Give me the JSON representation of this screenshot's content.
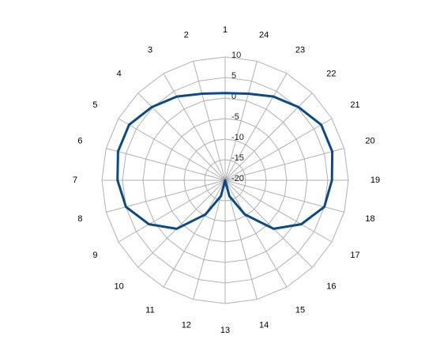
{
  "chart_data": {
    "type": "radar",
    "categories": [
      "1",
      "2",
      "3",
      "4",
      "5",
      "6",
      "7",
      "8",
      "9",
      "10",
      "11",
      "12",
      "13",
      "14",
      "15",
      "16",
      "17",
      "18",
      "19",
      "20",
      "21",
      "22",
      "23",
      "24"
    ],
    "series": [
      {
        "color": "#0b4a84",
        "values": [
          1.2,
          1.8,
          3.5,
          5.2,
          7,
          7,
          6.2,
          5,
          1.4,
          -3.3,
          -10.4,
          -16,
          -20,
          -16,
          -10.4,
          -3.3,
          1.4,
          5,
          6,
          7,
          7,
          5.2,
          3.5,
          1.8
        ]
      }
    ],
    "ylim": [
      -20,
      10
    ],
    "yticks": [
      10,
      5,
      0,
      -5,
      -10,
      -15,
      -20
    ],
    "grid": true
  }
}
